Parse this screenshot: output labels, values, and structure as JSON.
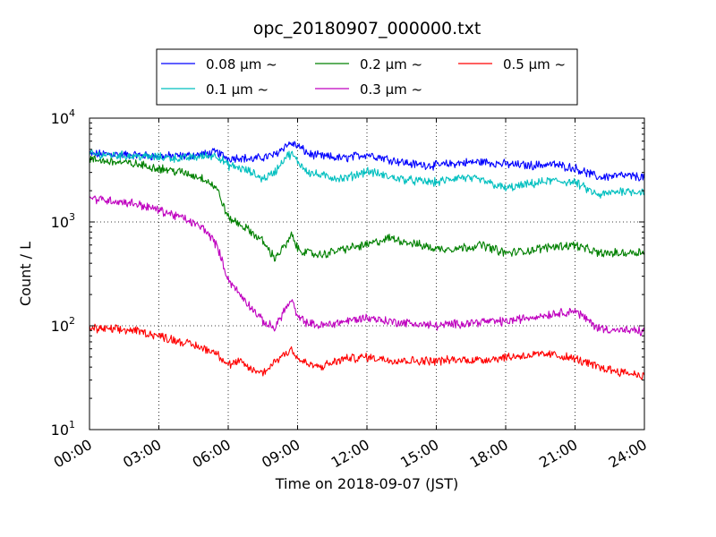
{
  "chart_data": {
    "type": "line",
    "title": "opc_20180907_000000.txt",
    "xlabel": "Time on 2018-09-07 (JST)",
    "ylabel": "Count / L",
    "x_unit": "time (HH:MM)",
    "xlim": [
      "00:00",
      "24:00"
    ],
    "ylim": [
      10,
      10000
    ],
    "y_scale": "log",
    "x_ticks": [
      "00:00",
      "03:00",
      "06:00",
      "09:00",
      "12:00",
      "15:00",
      "18:00",
      "21:00",
      "24:00"
    ],
    "y_ticks": [
      {
        "value": 10,
        "base": "10",
        "exp": "1"
      },
      {
        "value": 100,
        "base": "10",
        "exp": "2"
      },
      {
        "value": 1000,
        "base": "10",
        "exp": "3"
      },
      {
        "value": 10000,
        "base": "10",
        "exp": "4"
      }
    ],
    "grid": true,
    "grid_style": "dotted",
    "legend_placement": "top-center",
    "x": [
      "00:00",
      "01:00",
      "02:00",
      "03:00",
      "04:00",
      "05:00",
      "05:30",
      "06:00",
      "06:30",
      "07:00",
      "07:30",
      "08:00",
      "08:30",
      "08:45",
      "09:00",
      "09:30",
      "10:00",
      "11:00",
      "12:00",
      "13:00",
      "14:00",
      "15:00",
      "16:00",
      "17:00",
      "18:00",
      "19:00",
      "20:00",
      "21:00",
      "22:00",
      "23:00",
      "24:00"
    ],
    "series": [
      {
        "name": "0.08 μm ~",
        "color": "#0000ff",
        "values": [
          4500,
          4500,
          4400,
          4300,
          4300,
          4500,
          4700,
          4100,
          4200,
          4000,
          4200,
          4400,
          5500,
          5700,
          5400,
          4500,
          4300,
          4100,
          4500,
          4000,
          3600,
          3500,
          3700,
          3800,
          3600,
          3500,
          3600,
          3300,
          2700,
          2800,
          2700
        ]
      },
      {
        "name": "0.1 μm ~",
        "color": "#00bfbf",
        "values": [
          4500,
          4400,
          4300,
          4200,
          4100,
          4300,
          4400,
          3500,
          3300,
          3000,
          2600,
          3000,
          4300,
          4500,
          3800,
          3000,
          2800,
          2600,
          3100,
          2700,
          2500,
          2400,
          2700,
          2500,
          2100,
          2300,
          2500,
          2400,
          1800,
          2000,
          1950
        ]
      },
      {
        "name": "0.2 μm ~",
        "color": "#008000",
        "values": [
          4000,
          3800,
          3600,
          3300,
          3000,
          2600,
          2100,
          1100,
          950,
          800,
          650,
          450,
          600,
          750,
          550,
          500,
          480,
          550,
          600,
          700,
          620,
          550,
          560,
          600,
          500,
          530,
          580,
          600,
          500,
          500,
          520
        ]
      },
      {
        "name": "0.3 μm ~",
        "color": "#bf00bf",
        "values": [
          1700,
          1600,
          1500,
          1300,
          1100,
          850,
          600,
          280,
          200,
          150,
          110,
          95,
          150,
          175,
          120,
          105,
          100,
          110,
          120,
          110,
          105,
          100,
          105,
          110,
          110,
          120,
          130,
          140,
          95,
          90,
          88
        ]
      },
      {
        "name": "0.5 μm ~",
        "color": "#ff0000",
        "values": [
          95,
          92,
          90,
          80,
          70,
          60,
          55,
          42,
          45,
          38,
          35,
          45,
          55,
          60,
          48,
          42,
          40,
          48,
          50,
          47,
          46,
          46,
          47,
          47,
          50,
          52,
          53,
          48,
          40,
          36,
          33
        ]
      }
    ]
  }
}
